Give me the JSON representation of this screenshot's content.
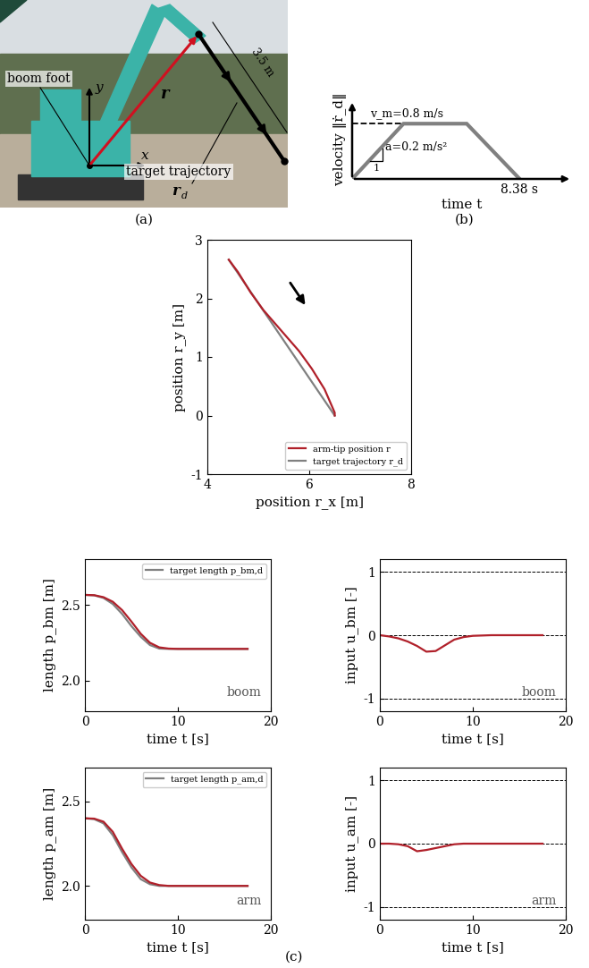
{
  "panel_a": {
    "type": "diagram",
    "caption": "(a)",
    "labels": {
      "boom_foot": "boom foot",
      "x_axis": "x",
      "y_axis": "y",
      "position_vector": "r",
      "length": "3.5 m",
      "target": "target trajectory",
      "target_symbol": "r",
      "target_symbol_sub": "d"
    }
  },
  "chart_data": [
    {
      "type": "line",
      "caption": "(b)",
      "x_label": "time t",
      "y_label": "velocity ‖ṙ_d‖",
      "x": [
        0,
        2.57,
        5.73,
        8.38
      ],
      "values": [
        0,
        0.8,
        0.8,
        0
      ],
      "color": "#808080",
      "xlim": [
        0,
        11
      ],
      "ylim": [
        0,
        1.14
      ],
      "xticks": [
        {
          "value": 8.38,
          "label": "8.38 s"
        }
      ],
      "yticks": [],
      "tick_labels": "x",
      "annotations": {
        "max_velocity": "v_m=0.8 m/s",
        "acceleration": "a=0.2 m/s²",
        "slope_unit": "1"
      }
    },
    {
      "type": "line",
      "x_label": "position r_x [m]",
      "y_label": "position r_y [m]",
      "xlim": [
        4,
        8
      ],
      "ylim": [
        -1,
        3
      ],
      "xticks": [
        4,
        6,
        8
      ],
      "yticks": [
        -1,
        0,
        1,
        2,
        3
      ],
      "legend": "lower right",
      "series": [
        {
          "name": "target trajectory r_d",
          "color": "#808080",
          "x": [
            4.42,
            6.5
          ],
          "values": [
            2.66,
            0.0
          ]
        },
        {
          "name": "arm-tip position r",
          "color": "#b0202a",
          "x": [
            4.42,
            4.6,
            4.85,
            5.1,
            5.3,
            5.55,
            5.8,
            6.05,
            6.3,
            6.5,
            6.5
          ],
          "values": [
            2.66,
            2.45,
            2.1,
            1.8,
            1.6,
            1.35,
            1.1,
            0.8,
            0.45,
            0.05,
            0.0
          ]
        }
      ]
    },
    {
      "type": "line",
      "x_label": "time t [s]",
      "y_label": "length p_bm [m]",
      "annotation": "boom",
      "xlim": [
        0,
        20
      ],
      "ylim": [
        1.8,
        2.8
      ],
      "xticks": [
        0,
        10,
        20
      ],
      "yticks": [
        {
          "value": 2,
          "label": "2.0"
        },
        2.5
      ],
      "legend": "upper right",
      "x": [
        0,
        1,
        2,
        3,
        4,
        5,
        6,
        7,
        8,
        9,
        10,
        12,
        14,
        17.5
      ],
      "series": [
        {
          "name": "target length p_bm,d",
          "color": "#808080",
          "values": [
            2.565,
            2.562,
            2.545,
            2.505,
            2.44,
            2.36,
            2.29,
            2.235,
            2.212,
            2.21,
            2.21,
            2.21,
            2.21,
            2.21
          ]
        },
        {
          "color": "#b0202a",
          "values": [
            2.565,
            2.563,
            2.55,
            2.52,
            2.465,
            2.39,
            2.31,
            2.25,
            2.22,
            2.212,
            2.21,
            2.21,
            2.21,
            2.21
          ]
        }
      ]
    },
    {
      "type": "line",
      "x_label": "time t [s]",
      "y_label": "input u_bm [-]",
      "annotation": "boom",
      "xlim": [
        0,
        20
      ],
      "ylim": [
        -1.2,
        1.2
      ],
      "xticks": [
        0,
        10,
        20
      ],
      "yticks": [
        -1,
        0,
        1
      ],
      "reference_lines": [
        -1,
        0,
        1
      ],
      "x": [
        0,
        1,
        2,
        3,
        4,
        5,
        6,
        7,
        8,
        9,
        10,
        12,
        14,
        17.5
      ],
      "series": [
        {
          "color": "#b0202a",
          "values": [
            0,
            -0.02,
            -0.05,
            -0.1,
            -0.17,
            -0.26,
            -0.25,
            -0.16,
            -0.07,
            -0.03,
            -0.01,
            0,
            0,
            0
          ]
        }
      ]
    },
    {
      "type": "line",
      "x_label": "time t [s]",
      "y_label": "length p_am [m]",
      "annotation": "arm",
      "xlim": [
        0,
        20
      ],
      "ylim": [
        1.8,
        2.7
      ],
      "xticks": [
        0,
        10,
        20
      ],
      "yticks": [
        {
          "value": 2,
          "label": "2.0"
        },
        2.5
      ],
      "legend": "upper right",
      "x": [
        0,
        1,
        2,
        3,
        4,
        5,
        6,
        7,
        8,
        9,
        10,
        12,
        14,
        17.5
      ],
      "series": [
        {
          "name": "target length p_am,d",
          "color": "#808080",
          "values": [
            2.4,
            2.395,
            2.37,
            2.3,
            2.2,
            2.11,
            2.04,
            2.01,
            2.0,
            2.0,
            2.0,
            2.0,
            2.0,
            2.0
          ]
        },
        {
          "color": "#b0202a",
          "values": [
            2.4,
            2.398,
            2.38,
            2.32,
            2.22,
            2.13,
            2.06,
            2.02,
            2.005,
            2.0,
            2.0,
            2.0,
            2.0,
            2.0
          ]
        }
      ]
    },
    {
      "type": "line",
      "x_label": "time t [s]",
      "y_label": "input u_am [-]",
      "annotation": "arm",
      "xlim": [
        0,
        20
      ],
      "ylim": [
        -1.2,
        1.2
      ],
      "xticks": [
        0,
        10,
        20
      ],
      "yticks": [
        -1,
        0,
        1
      ],
      "reference_lines": [
        -1,
        0,
        1
      ],
      "x": [
        0,
        1,
        2,
        3,
        4,
        5,
        6,
        7,
        8,
        9,
        10,
        12,
        14,
        17.5
      ],
      "series": [
        {
          "color": "#b0202a",
          "values": [
            0,
            0,
            -0.01,
            -0.04,
            -0.12,
            -0.1,
            -0.07,
            -0.04,
            -0.01,
            0,
            0,
            0,
            0,
            0
          ]
        }
      ]
    }
  ],
  "caption_c": "(c)"
}
